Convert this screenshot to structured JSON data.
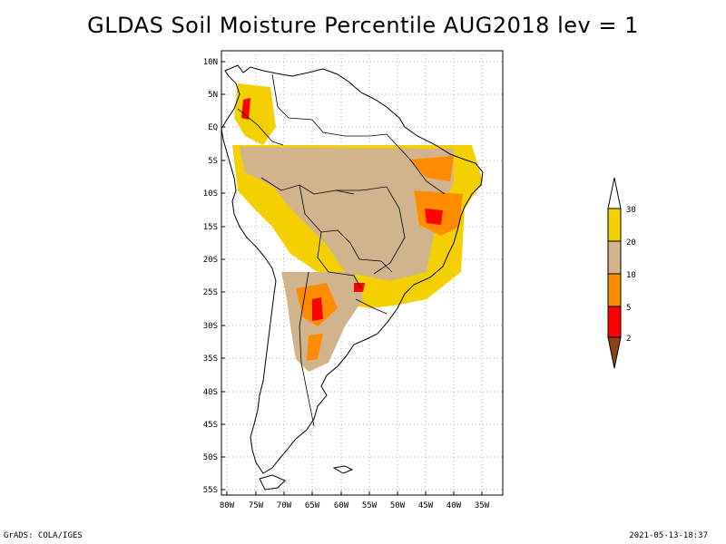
{
  "title": "GLDAS Soil Moisture Percentile AUG2018 lev = 1",
  "map": {
    "lat_labels": [
      "10N",
      "5N",
      "EQ",
      "5S",
      "10S",
      "15S",
      "20S",
      "25S",
      "30S",
      "35S",
      "40S",
      "45S",
      "50S",
      "55S"
    ],
    "lon_labels": [
      "80W",
      "75W",
      "70W",
      "65W",
      "60W",
      "55W",
      "50W",
      "45W",
      "40W",
      "35W"
    ],
    "grid": "dotted"
  },
  "legend": {
    "ticks": [
      "30",
      "20",
      "10",
      "5",
      "2"
    ],
    "colors": {
      "above_30": "#ffffff",
      "20_30": "#f5d000",
      "10_20": "#d2b48c",
      "5_10": "#ff8c00",
      "2_5": "#ff0000",
      "below_2": "#8b4513"
    }
  },
  "footer": {
    "left": "GrADS: COLA/IGES",
    "right": "2021-05-13-18:37"
  }
}
